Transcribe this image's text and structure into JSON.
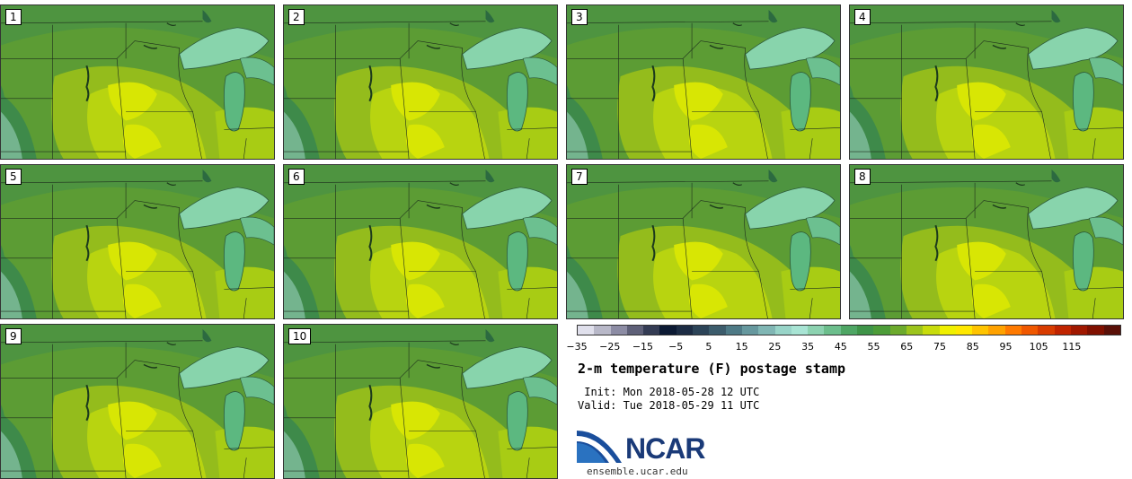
{
  "panels": [
    {
      "label": "1"
    },
    {
      "label": "2"
    },
    {
      "label": "3"
    },
    {
      "label": "4"
    },
    {
      "label": "5"
    },
    {
      "label": "6"
    },
    {
      "label": "7"
    },
    {
      "label": "8"
    },
    {
      "label": "9"
    },
    {
      "label": "10"
    }
  ],
  "colorbar": {
    "colors": [
      "#e0e0ec",
      "#b8b8c8",
      "#8c8ca4",
      "#5e6078",
      "#343c54",
      "#0c1a34",
      "#1c2c44",
      "#2c4458",
      "#3c5c6c",
      "#4e7a86",
      "#66989e",
      "#80b6b4",
      "#98d4c8",
      "#a8e4d4",
      "#8cd2b0",
      "#6cbe8c",
      "#4ea664",
      "#3e9448",
      "#4c9c38",
      "#6caa2c",
      "#9cc41c",
      "#c8dc0c",
      "#f0f000",
      "#ffe800",
      "#ffc400",
      "#ffa200",
      "#ff7a00",
      "#f05800",
      "#d83c00",
      "#c02400",
      "#a01800",
      "#801000",
      "#5a1008"
    ],
    "tick_labels": [
      "−35",
      "−25",
      "−15",
      "−5",
      "5",
      "15",
      "25",
      "35",
      "45",
      "55",
      "65",
      "75",
      "85",
      "95",
      "105",
      "115"
    ]
  },
  "title": "2-m temperature (F) postage stamp",
  "init_text": " Init: Mon 2018-05-28 12 UTC",
  "valid_text": "Valid: Tue 2018-05-29 11 UTC",
  "logo_text": "NCAR",
  "site_text": "ensemble.ucar.edu"
}
